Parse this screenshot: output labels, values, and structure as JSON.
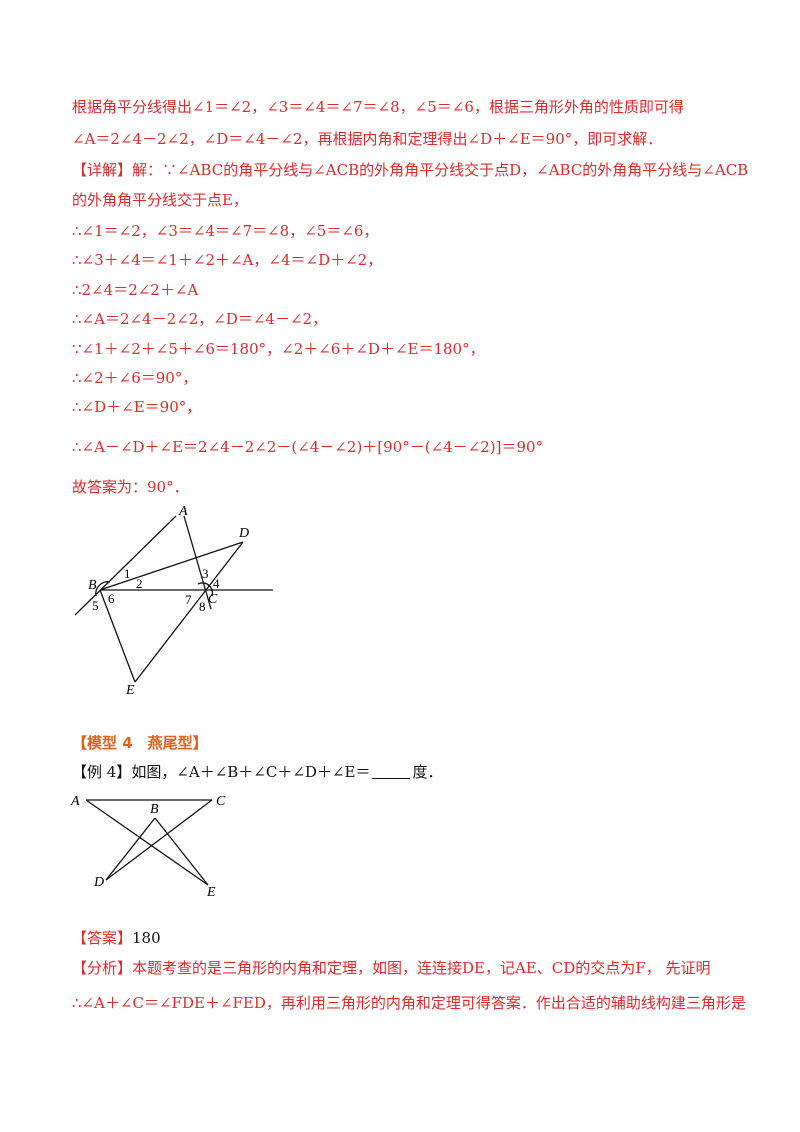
{
  "lines": {
    "l1": "根据角平分线得出∠1＝∠2，∠3＝∠4＝∠7＝∠8，∠5＝∠6，根据三角形外角的性质即可得",
    "l2": "∠A＝2∠4－2∠2，∠D＝∠4－∠2，再根据内角和定理得出∠D＋∠E＝90°，即可求解．",
    "l3_tag": "【详解】",
    "l3": "解：∵∠ABC的角平分线与∠ACB的外角角平分线交于点D，∠ABC的外角角平分线与∠ACB",
    "l4": "的外角角平分线交于点E，",
    "l5": "∴∠1＝∠2，∠3＝∠4＝∠7＝∠8，∠5＝∠6，",
    "l6": "∴∠3＋∠4＝∠1＋∠2＋∠A，∠4＝∠D＋∠2，",
    "l7": "∴2∠4＝2∠2＋∠A",
    "l8": "∴∠A＝2∠4－2∠2，∠D＝∠4－∠2，",
    "l9": "∵∠1＋∠2＋∠5＋∠6＝180°，∠2＋∠6＋∠D＋∠E＝180°，",
    "l10": "∴∠2＋∠6＝90°，",
    "l11": "∴∠D＋∠E＝90°，",
    "l12": "∴∠A－∠D＋∠E＝2∠4－2∠2－(∠4－∠2)＋[90°－(∠4－∠2)]＝90°",
    "l13": "故答案为：90°．"
  },
  "figure1": {
    "labels": {
      "A": "A",
      "B": "B",
      "C": "C",
      "D": "D",
      "E": "E",
      "n1": "1",
      "n2": "2",
      "n3": "3",
      "n4": "4",
      "n5": "5",
      "n6": "6",
      "n7": "7",
      "n8": "8"
    }
  },
  "model4": {
    "heading": "【模型 4　燕尾型】"
  },
  "example4": {
    "tag": "【例 4】",
    "before_blank": "如图，∠A＋∠B＋∠C＋∠D＋∠E＝",
    "after_blank": "度．"
  },
  "figure2": {
    "labels": {
      "A": "A",
      "B": "B",
      "C": "C",
      "D": "D",
      "E": "E"
    }
  },
  "answer": {
    "tag": "【答案】",
    "value": "180"
  },
  "analysis": {
    "tag": "【分析】",
    "l1": "本题考查的是三角形的内角和定理，如图，连连接DE，记AE、CD的交点为F，  先证明",
    "l2": "∴∠A＋∠C＝∠FDE＋∠FED，再利用三角形的内角和定理可得答案．作出合适的辅助线构建三角形是"
  }
}
